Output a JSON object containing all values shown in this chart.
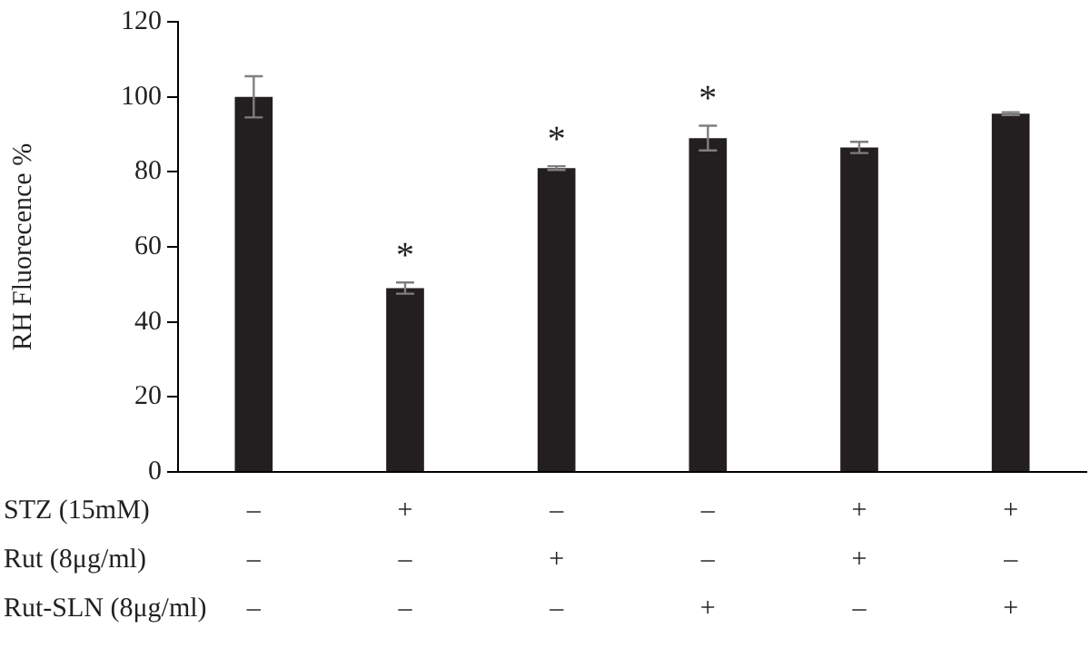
{
  "chart_data": {
    "type": "bar",
    "ylabel": "RH Fluorecence %",
    "categories": [
      "–\n–\n–",
      "+\n–\n–",
      "–\n+\n–",
      "–\n–\n+",
      "+\n+\n–",
      "+\n–\n+"
    ],
    "values": [
      100,
      49,
      81,
      89,
      86.5,
      95.5
    ],
    "errors": [
      5.5,
      1.5,
      0.5,
      3.3,
      1.5,
      0.4
    ],
    "color": "#231f20",
    "ylim": [
      0,
      120
    ],
    "yticks": [
      0,
      20,
      40,
      60,
      80,
      100,
      120
    ],
    "grid": false,
    "legend": false,
    "annotations": [
      "STZ (15mM)",
      "Rut (8μg/ml)",
      "Rut-SLN (8μg/ml)",
      {
        "text": "*",
        "x": "+\n–\n–",
        "y": 49
      },
      {
        "text": "*",
        "x": "–\n+\n–",
        "y": 81
      },
      {
        "text": "*",
        "x": "–\n–\n+",
        "y": 89
      }
    ]
  }
}
